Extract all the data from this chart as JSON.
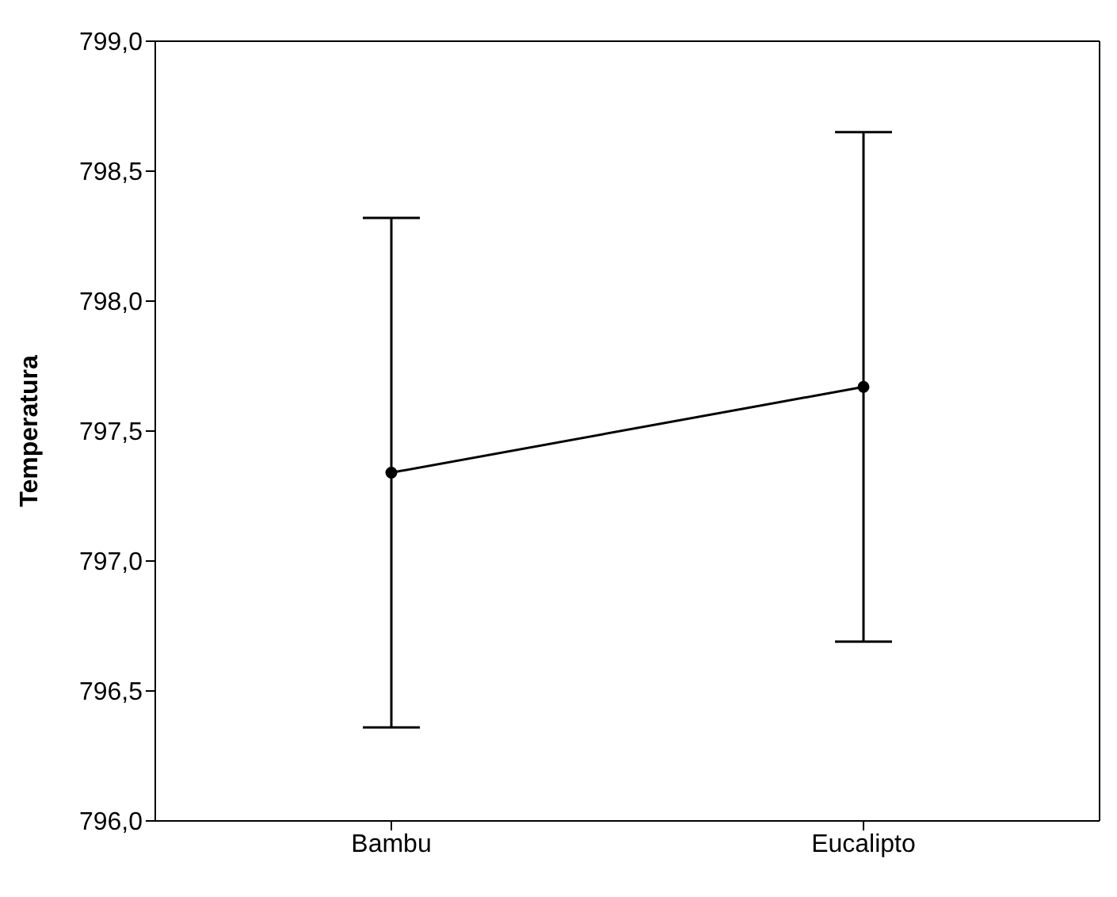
{
  "chart_data": {
    "type": "line",
    "ylabel": "Temperatura",
    "categories": [
      "Bambu",
      "Eucalipto"
    ],
    "series": [
      {
        "color": "#000000",
        "values": [
          797.34,
          797.67
        ],
        "errors": [
          0.98,
          0.98
        ]
      }
    ],
    "ylim": [
      796.0,
      799.0
    ],
    "yticks": [
      {
        "value": 796.0,
        "label": "796,0"
      },
      {
        "value": 796.5,
        "label": "796,5"
      },
      {
        "value": 797.0,
        "label": "797,0"
      },
      {
        "value": 797.5,
        "label": "797,5"
      },
      {
        "value": 798.0,
        "label": "798,0"
      },
      {
        "value": 798.5,
        "label": "798,5"
      },
      {
        "value": 799.0,
        "label": "799,0"
      }
    ],
    "marker": "circle",
    "line_style": "solid"
  }
}
